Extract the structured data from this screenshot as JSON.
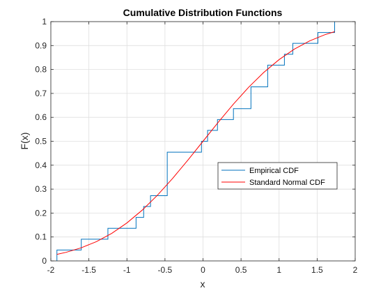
{
  "chart_data": {
    "type": "line",
    "title": "Cumulative Distribution Functions",
    "xlabel": "x",
    "ylabel": "F(x)",
    "xlim": [
      -2,
      2
    ],
    "ylim": [
      0,
      1
    ],
    "xticks": [
      -2,
      -1.5,
      -1,
      -0.5,
      0,
      0.5,
      1,
      1.5,
      2
    ],
    "xtick_labels": [
      "-2",
      "-1.5",
      "-1",
      "-0.5",
      "0",
      "0.5",
      "1",
      "1.5",
      "2"
    ],
    "yticks": [
      0,
      0.1,
      0.2,
      0.3,
      0.4,
      0.5,
      0.6,
      0.7,
      0.8,
      0.9,
      1
    ],
    "ytick_labels": [
      "0",
      "0.1",
      "0.2",
      "0.3",
      "0.4",
      "0.5",
      "0.6",
      "0.7",
      "0.8",
      "0.9",
      "1"
    ],
    "grid": true,
    "legend_position": "center-right",
    "series": [
      {
        "name": "Empirical CDF",
        "kind": "stairs",
        "color": "#0072BD",
        "x": [
          -1.92,
          -1.92,
          -1.6,
          -1.6,
          -1.25,
          -1.25,
          -0.88,
          -0.88,
          -0.78,
          -0.78,
          -0.69,
          -0.69,
          -0.47,
          -0.47,
          -0.02,
          -0.02,
          0.06,
          0.06,
          0.19,
          0.19,
          0.4,
          0.4,
          0.63,
          0.63,
          0.85,
          0.85,
          1.07,
          1.07,
          1.18,
          1.18,
          1.51,
          1.51,
          1.73,
          1.73
        ],
        "y": [
          0,
          0.0455,
          0.0455,
          0.0909,
          0.0909,
          0.1364,
          0.1364,
          0.1818,
          0.1818,
          0.2273,
          0.2273,
          0.2727,
          0.2727,
          0.4545,
          0.4545,
          0.5,
          0.5,
          0.5455,
          0.5455,
          0.5909,
          0.5909,
          0.6364,
          0.6364,
          0.7273,
          0.7273,
          0.8182,
          0.8182,
          0.8636,
          0.8636,
          0.9091,
          0.9091,
          0.9545,
          0.9545,
          1.0
        ]
      },
      {
        "name": "Standard Normal CDF",
        "kind": "line",
        "color": "#FF0000",
        "x": [
          -1.92,
          -1.8,
          -1.6,
          -1.4,
          -1.2,
          -1.0,
          -0.8,
          -0.6,
          -0.4,
          -0.2,
          0.0,
          0.2,
          0.4,
          0.6,
          0.8,
          1.0,
          1.2,
          1.4,
          1.6,
          1.73
        ],
        "y": [
          0.0274,
          0.0359,
          0.0548,
          0.0808,
          0.1151,
          0.1587,
          0.2119,
          0.2743,
          0.3446,
          0.4207,
          0.5,
          0.5793,
          0.6554,
          0.7257,
          0.7881,
          0.8413,
          0.8849,
          0.9192,
          0.9452,
          0.9582
        ]
      }
    ]
  }
}
